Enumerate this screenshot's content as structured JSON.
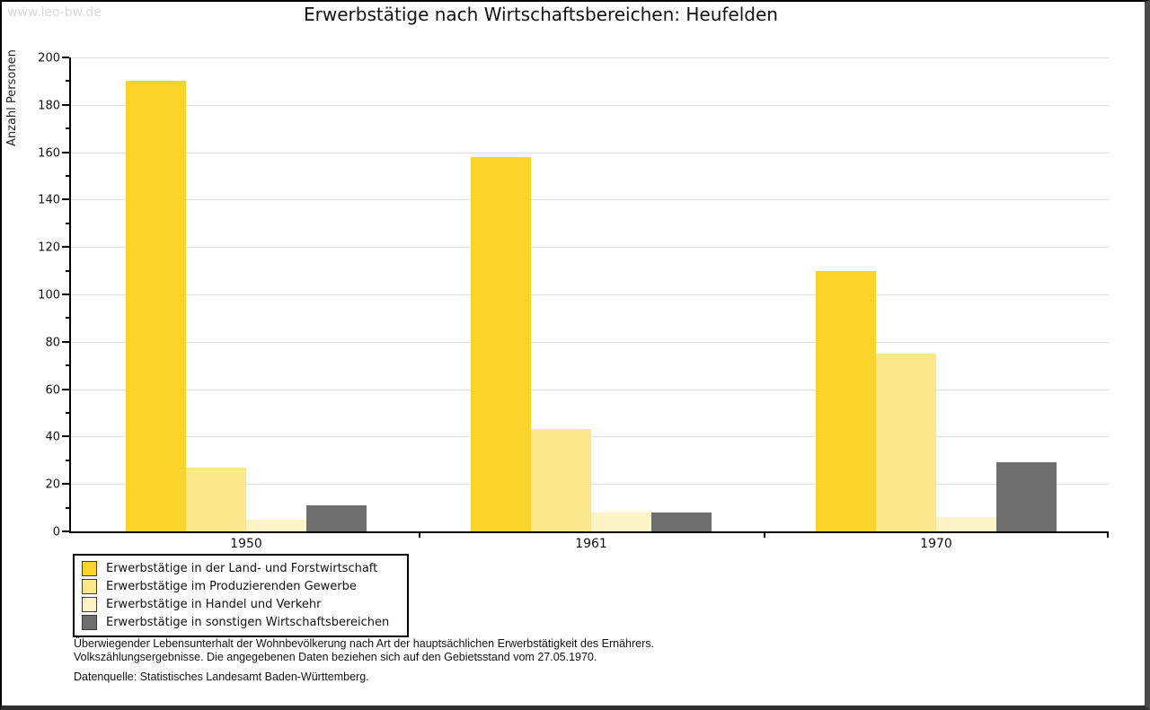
{
  "watermark": "www.leo-bw.de",
  "title": "Erwerbstätige nach Wirtschaftsbereichen: Heufelden",
  "chart_data": {
    "type": "bar",
    "title": "Erwerbstätige nach Wirtschaftsbereichen: Heufelden",
    "xlabel": "",
    "ylabel": "Anzahl Personen",
    "ylim": [
      0,
      200
    ],
    "ytick_step": 20,
    "ytick_minor_step": 10,
    "grid": true,
    "legend_position": "bottom-left",
    "categories": [
      "1950",
      "1961",
      "1970"
    ],
    "series": [
      {
        "name": "Erwerbstätige in der Land- und Forstwirtschaft",
        "color": "#fcd32b",
        "values": [
          190,
          158,
          110
        ]
      },
      {
        "name": "Erwerbstätige im Produzierenden Gewerbe",
        "color": "#fbe88d",
        "values": [
          27,
          43,
          75
        ]
      },
      {
        "name": "Erwerbstätige in Handel und Verkehr",
        "color": "#fcf3c6",
        "values": [
          5,
          8,
          6
        ]
      },
      {
        "name": "Erwerbstätige in sonstigen Wirtschaftsbereichen",
        "color": "#6e6e6e",
        "values": [
          11,
          8,
          29
        ]
      }
    ]
  },
  "footnote": {
    "line1": "Überwiegender Lebensunterhalt der Wohnbevölkerung nach Art der hauptsächlichen Erwerbstätigkeit des Ernährers.",
    "line2": "Volkszählungsergebnisse. Die angegebenen Daten beziehen sich auf den Gebietsstand vom 27.05.1970.",
    "source": "Datenquelle: Statistisches Landesamt Baden-Württemberg."
  }
}
